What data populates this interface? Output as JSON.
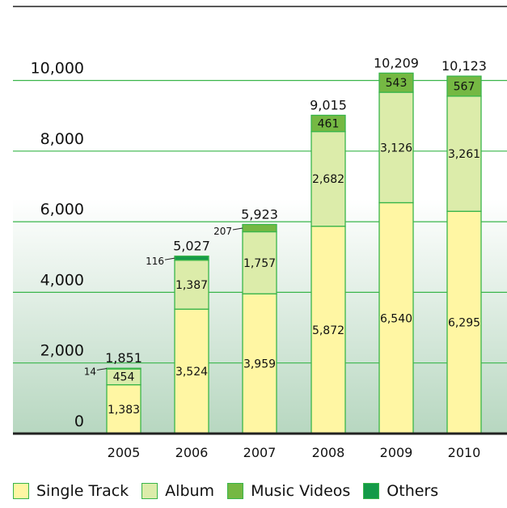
{
  "chart_data": {
    "type": "bar",
    "stacked": true,
    "categories": [
      "2005",
      "2006",
      "2007",
      "2008",
      "2009",
      "2010"
    ],
    "series": [
      {
        "name": "Single Track",
        "color": "#fff6a3",
        "values": [
          1383,
          3524,
          3959,
          5872,
          6540,
          6295
        ]
      },
      {
        "name": "Album",
        "color": "#dcecaa",
        "values": [
          454,
          1387,
          1757,
          2682,
          3126,
          3261
        ]
      },
      {
        "name": "Music Videos",
        "color": "#75b843",
        "values": [
          0,
          0,
          207,
          461,
          543,
          567
        ]
      },
      {
        "name": "Others",
        "color": "#149a48",
        "values": [
          14,
          116,
          0,
          0,
          0,
          0
        ]
      }
    ],
    "totals": [
      "1,851",
      "5,027",
      "5,923",
      "9,015",
      "10,209",
      "10,123"
    ],
    "segment_labels": [
      [
        "1,383",
        "454",
        "",
        "14"
      ],
      [
        "3,524",
        "1,387",
        "",
        "116"
      ],
      [
        "3,959",
        "1,757",
        "207",
        ""
      ],
      [
        "5,872",
        "2,682",
        "461",
        ""
      ],
      [
        "6,540",
        "3,126",
        "543",
        ""
      ],
      [
        "6,295",
        "3,261",
        "567",
        ""
      ]
    ],
    "yticks": [
      0,
      2000,
      4000,
      6000,
      8000,
      10000
    ],
    "ytick_labels": [
      "0",
      "2,000",
      "4,000",
      "6,000",
      "8,000",
      "10,000"
    ],
    "ylim": [
      0,
      11500
    ],
    "grid": true,
    "legend_position": "bottom",
    "title": "",
    "xlabel": "",
    "ylabel": ""
  },
  "legend": {
    "items": [
      {
        "label": "Single Track",
        "color": "#fff6a3"
      },
      {
        "label": "Album",
        "color": "#dcecaa"
      },
      {
        "label": "Music Videos",
        "color": "#75b843"
      },
      {
        "label": "Others",
        "color": "#149a48"
      }
    ]
  },
  "colors": {
    "grid_line": "#39b54a",
    "bar_border": "#39b54a",
    "axis": "#222222",
    "gradient_bottom": "#b7d7c0"
  }
}
